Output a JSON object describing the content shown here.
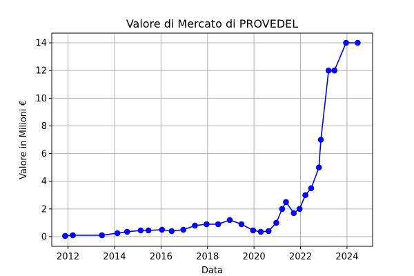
{
  "chart_data": {
    "type": "line",
    "title": "Valore di Mercato di PROVEDEL",
    "xlabel": "Data",
    "ylabel": "Valore in Milioni €",
    "xlim": [
      2011.3,
      2025.1
    ],
    "ylim": [
      -0.7,
      14.7
    ],
    "x_ticks": [
      2012,
      2014,
      2016,
      2018,
      2020,
      2022,
      2024
    ],
    "x_tick_labels": [
      "2012",
      "2014",
      "2016",
      "2018",
      "2020",
      "2022",
      "2024"
    ],
    "y_ticks": [
      0,
      2,
      4,
      6,
      8,
      10,
      12,
      14
    ],
    "y_tick_labels": [
      "0",
      "2",
      "4",
      "6",
      "8",
      "10",
      "12",
      "14"
    ],
    "grid": true,
    "series": [
      {
        "color": "#0000ff",
        "marker": "circle",
        "x": [
          "2011-11",
          "2012-03",
          "2013-06",
          "2014-02",
          "2014-07",
          "2015-02",
          "2015-06",
          "2016-01",
          "2016-06",
          "2016-12",
          "2017-06",
          "2017-12",
          "2018-06",
          "2018-12",
          "2019-06",
          "2019-12",
          "2020-04",
          "2020-08",
          "2020-12",
          "2021-03",
          "2021-05",
          "2021-09",
          "2021-12",
          "2022-03",
          "2022-06",
          "2022-10",
          "2022-11",
          "2023-03",
          "2023-06",
          "2023-12",
          "2024-06"
        ],
        "values": [
          0.05,
          0.1,
          0.1,
          0.25,
          0.35,
          0.45,
          0.45,
          0.5,
          0.4,
          0.5,
          0.8,
          0.9,
          0.9,
          1.2,
          0.9,
          0.45,
          0.35,
          0.4,
          1.0,
          2.0,
          2.5,
          1.7,
          2.0,
          3.0,
          3.5,
          5.0,
          7.0,
          12.0,
          12.0,
          14.0,
          14.0
        ]
      }
    ]
  }
}
